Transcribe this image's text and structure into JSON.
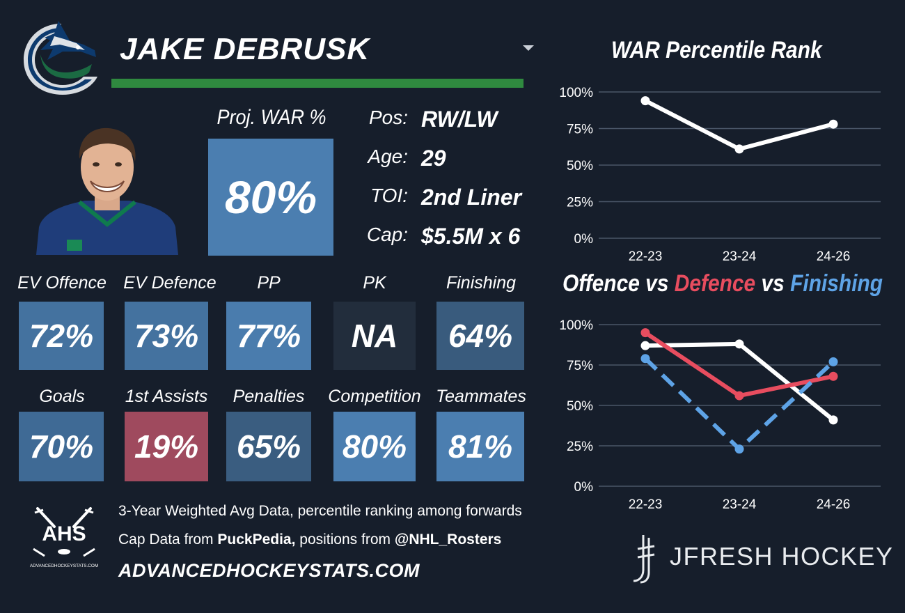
{
  "header": {
    "player_name": "JAKE DEBRUSK",
    "team_logo_icon": "canucks-orca-logo",
    "dropdown_icon": "caret-down-icon",
    "accent_color": "#2f8a3f"
  },
  "war": {
    "label": "Proj. WAR %",
    "value": "80%",
    "color": "#4b7eb0"
  },
  "info": [
    {
      "label": "Pos:",
      "value": "RW/LW"
    },
    {
      "label": "Age:",
      "value": "29"
    },
    {
      "label": "TOI:",
      "value": "2nd Liner"
    },
    {
      "label": "Cap:",
      "value": "$5.5M x 6"
    }
  ],
  "stats_row1": [
    {
      "label": "EV Offence",
      "value": "72%",
      "color": "#44729f"
    },
    {
      "label": "EV Defence",
      "value": "73%",
      "color": "#44729f"
    },
    {
      "label": "PP",
      "value": "77%",
      "color": "#4a7cad"
    },
    {
      "label": "PK",
      "value": "NA",
      "color": "#222d3c"
    },
    {
      "label": "Finishing",
      "value": "64%",
      "color": "#395b7d"
    }
  ],
  "stats_row2": [
    {
      "label": "Goals",
      "value": "70%",
      "color": "#3f6a95"
    },
    {
      "label": "1st Assists",
      "value": "19%",
      "color": "#9f4a5e"
    },
    {
      "label": "Penalties",
      "value": "65%",
      "color": "#3a5d80"
    },
    {
      "label": "Competition",
      "value": "80%",
      "color": "#4b7eb0"
    },
    {
      "label": "Teammates",
      "value": "81%",
      "color": "#4b7eb0"
    }
  ],
  "footer": {
    "line1": "3-Year Weighted Avg Data, percentile ranking among forwards",
    "line2_prefix": "Cap Data from ",
    "line2_source": "PuckPedia,",
    "line2_middle": " positions from ",
    "line2_handle": "@NHL_Rosters",
    "site": "ADVANCEDHOCKEYSTATS.COM",
    "ahs_logo_text": "AHS",
    "ahs_logo_subtext": "ADVANCEDHOCKEYSTATS.COM",
    "brand": "JFRESH HOCKEY",
    "brand_icon": "jfresh-hockey-stick-icon"
  },
  "chart_data": [
    {
      "type": "line",
      "title": "WAR Percentile Rank",
      "categories": [
        "22-23",
        "23-24",
        "24-26"
      ],
      "series": [
        {
          "values": [
            94,
            61,
            78
          ],
          "color": "#ffffff",
          "style": "solid"
        }
      ],
      "ylim": [
        0,
        100
      ],
      "yticks": [
        "0%",
        "25%",
        "50%",
        "75%",
        "100%"
      ],
      "grid": true
    },
    {
      "type": "line",
      "title_parts": [
        {
          "text": "Offence",
          "color": "#ffffff"
        },
        {
          "text": " vs ",
          "color": "#ffffff"
        },
        {
          "text": "Defence",
          "color": "#e84d5f"
        },
        {
          "text": " vs ",
          "color": "#ffffff"
        },
        {
          "text": "Finishing",
          "color": "#5ea3e6"
        }
      ],
      "categories": [
        "22-23",
        "23-24",
        "24-26"
      ],
      "series": [
        {
          "name": "Offence",
          "values": [
            87,
            88,
            41
          ],
          "color": "#ffffff",
          "style": "solid"
        },
        {
          "name": "Defence",
          "values": [
            95,
            56,
            68
          ],
          "color": "#e84d5f",
          "style": "solid"
        },
        {
          "name": "Finishing",
          "values": [
            79,
            23,
            77
          ],
          "color": "#5ea3e6",
          "style": "dashed"
        }
      ],
      "ylim": [
        0,
        100
      ],
      "yticks": [
        "0%",
        "25%",
        "50%",
        "75%",
        "100%"
      ],
      "grid": true
    }
  ]
}
